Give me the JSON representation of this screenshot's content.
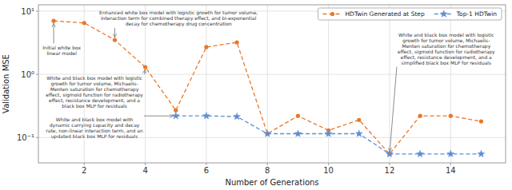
{
  "chart_data": {
    "type": "line",
    "xlabel": "Number of Generations",
    "ylabel": "Validation MSE",
    "log": "y",
    "grid": true,
    "legend": "upper-right",
    "series": [
      {
        "name": "HDTwin Generated at Step",
        "color": "#E8782A",
        "marker": "circle",
        "line_style": "dashed",
        "x": [
          1,
          2,
          3,
          4,
          5,
          6,
          7,
          8,
          9,
          10,
          11,
          12,
          13,
          14,
          15
        ],
        "values": [
          7.0,
          6.5,
          3.5,
          1.3,
          0.27,
          2.7,
          3.2,
          0.115,
          0.22,
          0.13,
          0.19,
          0.055,
          0.22,
          0.22,
          0.18
        ]
      },
      {
        "name": "Top-1 HDTwin",
        "color": "#5B8FD4",
        "marker": "star",
        "line_style": "dashed",
        "x": [
          5,
          6,
          7,
          8,
          9,
          10,
          11,
          12,
          13,
          14,
          15
        ],
        "values": [
          0.22,
          0.22,
          0.215,
          0.115,
          0.115,
          0.115,
          0.115,
          0.055,
          0.055,
          0.055,
          0.055
        ]
      }
    ],
    "xlim": [
      0.5,
      15.8
    ],
    "xticks": [
      2,
      4,
      6,
      8,
      10,
      12,
      14
    ],
    "ylim": [
      0.039810717055349734,
      12.589254117941675
    ],
    "yticks": [
      {
        "value": 0.1,
        "label": "10⁻¹"
      },
      {
        "value": 1,
        "label": "10⁰"
      },
      {
        "value": 10,
        "label": "10¹"
      }
    ],
    "annotations": [
      {
        "text": "Initial white box\nlinear model",
        "x": 1.0,
        "y": 7.0
      },
      {
        "text": "Enhanced white box model with logistic growth for tumor volume,\ninteraction term for combined therapy effect, and bi-exponential\ndecay for chemotherapy drug concentration",
        "x": 3.0,
        "y": 3.5
      },
      {
        "text": "White and black box model with logistic\ngrowth for tumor volume, Michaelis-\nMenten saturation for chemotherapy\neffect, sigmoid function for radiotherapy\neffect, resistance development, and a\nblack box MLP for residuals",
        "x": 4.0,
        "y": 1.3
      },
      {
        "text": "White and black box model with\ndynamic carrying capacity and decay\nrate, non-linear interaction term, and an\nupdated black box MLP for residuals",
        "x": 5.0,
        "y": 0.22
      },
      {
        "text": "White and black box model with logistic\ngrowth for tumor volume, Michaelis-\nMenten saturation for chemotherapy\neffect, sigmoid function for radiotherapy\neffect, resistance development, and a\nsimplified black box MLP for residuals",
        "x": 12.0,
        "y": 0.055
      }
    ]
  }
}
